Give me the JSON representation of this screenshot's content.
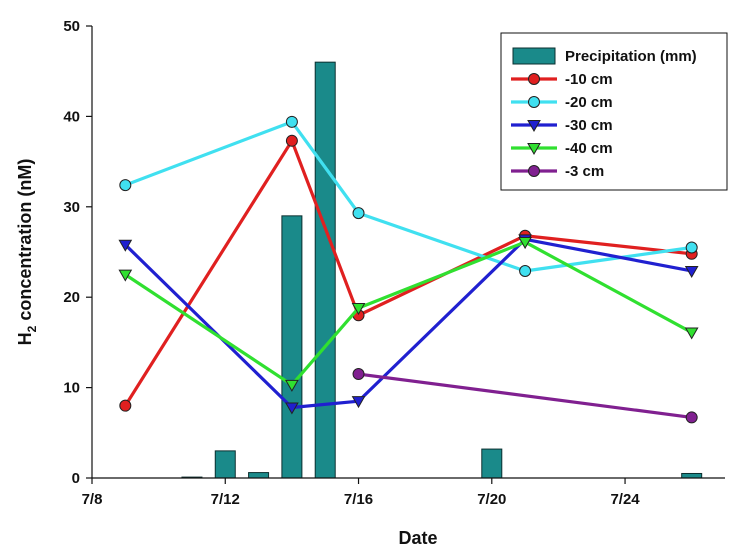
{
  "chart_data": {
    "type": "bar",
    "xlabel": "Date",
    "ylabel_main": "H",
    "ylabel_sub": "2",
    "ylabel_rest": " concentration (nM)",
    "x_ticks": [
      "7/8",
      "7/12",
      "7/16",
      "7/20",
      "7/24"
    ],
    "x_tick_days": [
      8,
      12,
      16,
      20,
      24
    ],
    "xlim_days": [
      8,
      27
    ],
    "ylim": [
      0,
      50
    ],
    "y_ticks": [
      0,
      10,
      20,
      30,
      40,
      50
    ],
    "grid": false,
    "legend_position": "top-right",
    "bars": {
      "name": "Precipitation (mm)",
      "color": "#1a8a8a",
      "points": [
        {
          "day": 11,
          "value": 0.1
        },
        {
          "day": 12,
          "value": 3.0
        },
        {
          "day": 13,
          "value": 0.6
        },
        {
          "day": 14,
          "value": 29.0
        },
        {
          "day": 15,
          "value": 46.0
        },
        {
          "day": 20,
          "value": 3.2
        },
        {
          "day": 26,
          "value": 0.5
        }
      ]
    },
    "series": [
      {
        "name": "-10 cm",
        "color": "#e02020",
        "marker": "circle",
        "points": [
          {
            "day": 9,
            "value": 8.0
          },
          {
            "day": 14,
            "value": 37.3
          },
          {
            "day": 16,
            "value": 18.0
          },
          {
            "day": 21,
            "value": 26.8
          },
          {
            "day": 26,
            "value": 24.8
          }
        ]
      },
      {
        "name": "-20 cm",
        "color": "#40e0f0",
        "marker": "circle",
        "points": [
          {
            "day": 9,
            "value": 32.4
          },
          {
            "day": 14,
            "value": 39.4
          },
          {
            "day": 16,
            "value": 29.3
          },
          {
            "day": 21,
            "value": 22.9
          },
          {
            "day": 26,
            "value": 25.5
          }
        ]
      },
      {
        "name": "-30 cm",
        "color": "#2020d0",
        "marker": "triangle-down",
        "points": [
          {
            "day": 9,
            "value": 25.8
          },
          {
            "day": 14,
            "value": 7.8
          },
          {
            "day": 16,
            "value": 8.5
          },
          {
            "day": 21,
            "value": 26.4
          },
          {
            "day": 26,
            "value": 22.9
          }
        ]
      },
      {
        "name": "-40 cm",
        "color": "#30e030",
        "marker": "triangle-down",
        "points": [
          {
            "day": 9,
            "value": 22.5
          },
          {
            "day": 14,
            "value": 10.3
          },
          {
            "day": 16,
            "value": 18.8
          },
          {
            "day": 21,
            "value": 26.1
          },
          {
            "day": 26,
            "value": 16.1
          }
        ]
      },
      {
        "name": "-3 cm",
        "color": "#802090",
        "marker": "circle",
        "points": [
          {
            "day": 16,
            "value": 11.5
          },
          {
            "day": 26,
            "value": 6.7
          }
        ]
      }
    ]
  }
}
